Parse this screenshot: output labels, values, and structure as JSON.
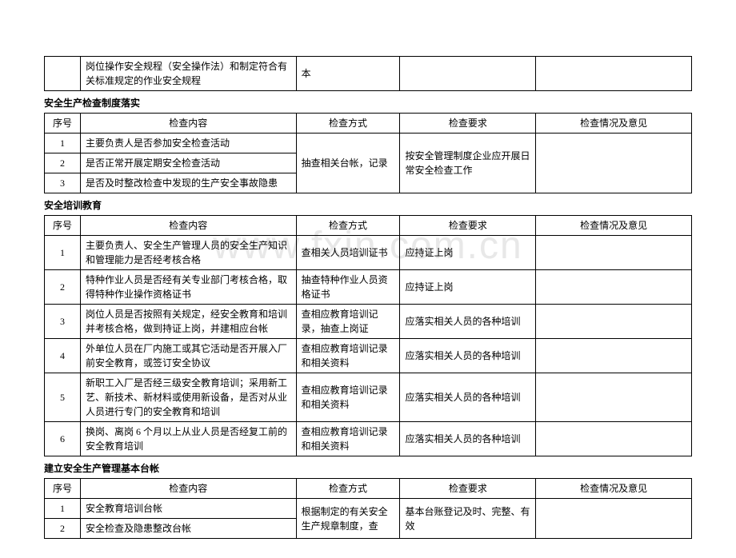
{
  "watermark": "www.fxin.com.cn",
  "top_table": {
    "row": {
      "seq": "",
      "content": "岗位操作安全规程（安全操作法）和制定符合有关标准规定的作业安全规程",
      "method": "本",
      "req": "",
      "status": ""
    }
  },
  "section1": {
    "title": "安全生产检查制度落实",
    "headers": {
      "seq": "序号",
      "content": "检查内容",
      "method": "检查方式",
      "req": "检查要求",
      "status": "检查情况及意见"
    },
    "rows": [
      {
        "seq": "1",
        "content": "主要负责人是否参加安全检查活动"
      },
      {
        "seq": "2",
        "content": "是否正常开展定期安全检查活动"
      },
      {
        "seq": "3",
        "content": "是否及时整改检查中发现的生产安全事故隐患"
      }
    ],
    "merged_method": "抽查相关台帐，记录",
    "merged_req": "按安全管理制度企业应开展日常安全检查工作"
  },
  "section2": {
    "title": "安全培训教育",
    "headers": {
      "seq": "序号",
      "content": "检查内容",
      "method": "检查方式",
      "req": "检查要求",
      "status": "检查情况及意见"
    },
    "rows": [
      {
        "seq": "1",
        "content": "主要负责人、安全生产管理人员的安全生产知识和管理能力是否经考核合格",
        "method": "查相关人员培训证书",
        "req": "应持证上岗"
      },
      {
        "seq": "2",
        "content": "特种作业人员是否经有关专业部门考核合格，取得特种作业操作资格证书",
        "method": "抽查特种作业人员资格证书",
        "req": "应持证上岗"
      },
      {
        "seq": "3",
        "content": "岗位人员是否按照有关规定，经安全教育和培训并考核合格，做到持证上岗，并建相应台帐",
        "method": "查相应教育培训记录，抽查上岗证",
        "req": "应落实相关人员的各种培训"
      },
      {
        "seq": "4",
        "content": "外单位人员在厂内施工或其它活动是否开展入厂前安全教育，或签订安全协议",
        "method": "查相应教育培训记录和相关资料",
        "req": "应落实相关人员的各种培训"
      },
      {
        "seq": "5",
        "content": "新职工入厂是否经三级安全教育培训；采用新工艺、新技术、新材料或使用新设备，是否对从业人员进行专门的安全教育和培训",
        "method": "查相应教育培训记录和相关资料",
        "req": "应落实相关人员的各种培训"
      },
      {
        "seq": "6",
        "content": "换岗、离岗 6 个月以上从业人员是否经复工前的安全教育培训",
        "method": "查相应教育培训记录和相关资料",
        "req": "应落实相关人员的各种培训"
      }
    ]
  },
  "section3": {
    "title": "建立安全生产管理基本台帐",
    "headers": {
      "seq": "序号",
      "content": "检查内容",
      "method": "检查方式",
      "req": "检查要求",
      "status": "检查情况及意见"
    },
    "rows": [
      {
        "seq": "1",
        "content": "安全教育培训台帐"
      },
      {
        "seq": "2",
        "content": "安全检查及隐患整改台帐"
      }
    ],
    "merged_method": "根据制定的有关安全生产规章制度，查",
    "merged_req": "基本台账登记及时、完整、有效"
  }
}
